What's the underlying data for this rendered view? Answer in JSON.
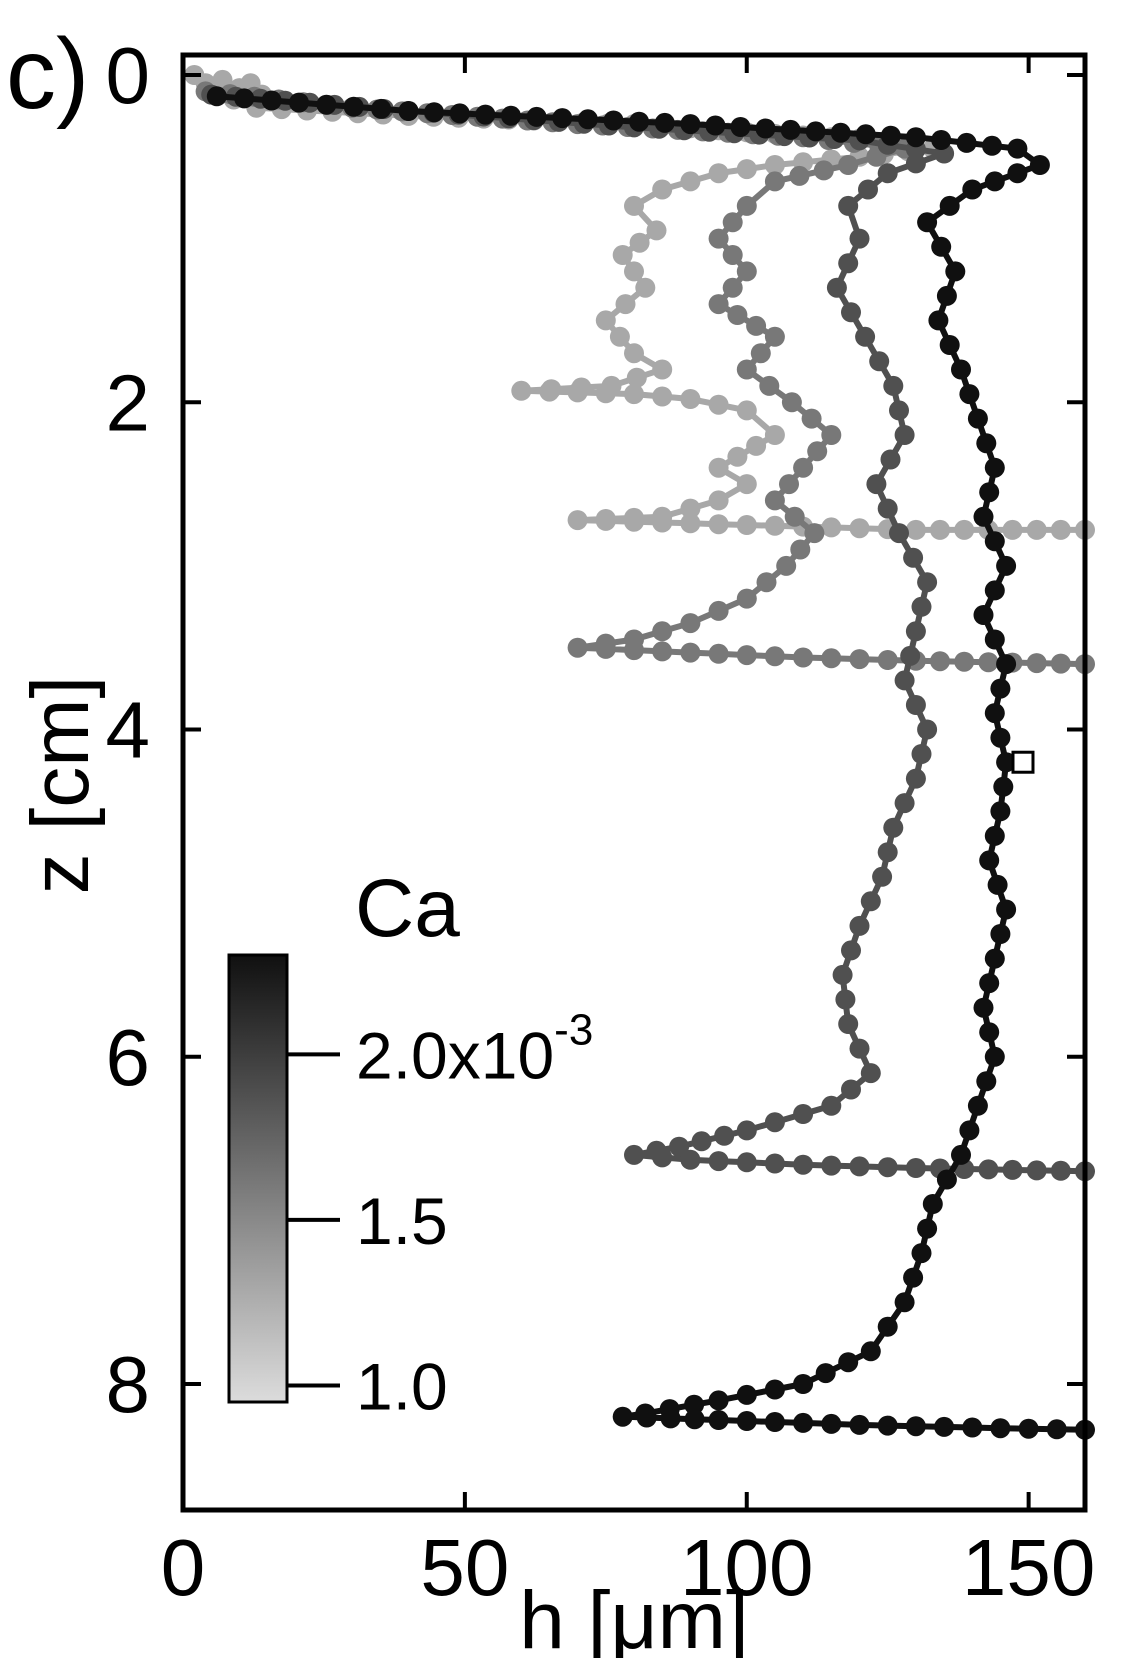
{
  "panel_label": "c)",
  "chart_data": {
    "type": "line",
    "xlabel": "h [μm]",
    "ylabel": "z [cm]",
    "xlim": [
      0,
      160
    ],
    "ylim": [
      9,
      0
    ],
    "xticks": [
      0,
      50,
      100,
      150
    ],
    "xtick_labels": [
      "0",
      "50",
      "100",
      "150"
    ],
    "yticks": [
      0,
      2,
      4,
      6,
      8
    ],
    "ytick_labels": [
      "0",
      "2",
      "4",
      "6",
      "8"
    ],
    "grid": false,
    "colorbar": {
      "title": "Ca",
      "ticks": [
        1.0,
        1.5,
        2.0
      ],
      "tick_labels": [
        "1.0",
        "1.5",
        "2.0x10"
      ],
      "tick_exponent": "-3",
      "range": [
        0.95,
        2.3
      ],
      "colors": [
        "#dcdcdc",
        "#101010"
      ]
    },
    "marker_square": {
      "h": 149,
      "z": 4.2
    },
    "series": [
      {
        "ca": 1.0,
        "color": "#a8a8a8",
        "points": [
          [
            2,
            0
          ],
          [
            4,
            0.05
          ],
          [
            7,
            0.03
          ],
          [
            10,
            0.08
          ],
          [
            12,
            0.05
          ],
          [
            14,
            0.12
          ],
          [
            9,
            0.15
          ],
          [
            13,
            0.2
          ],
          [
            40,
            0.25
          ],
          [
            80,
            0.3
          ],
          [
            100,
            0.35
          ],
          [
            115,
            0.38
          ],
          [
            125,
            0.4
          ],
          [
            133,
            0.45
          ],
          [
            120,
            0.5
          ],
          [
            105,
            0.55
          ],
          [
            95,
            0.6
          ],
          [
            85,
            0.7
          ],
          [
            80,
            0.8
          ],
          [
            84,
            0.95
          ],
          [
            78,
            1.1
          ],
          [
            82,
            1.3
          ],
          [
            75,
            1.5
          ],
          [
            80,
            1.7
          ],
          [
            85,
            1.8
          ],
          [
            76,
            1.9
          ],
          [
            60,
            1.93
          ],
          [
            80,
            1.95
          ],
          [
            90,
            1.98
          ],
          [
            100,
            2.05
          ],
          [
            105,
            2.2
          ],
          [
            95,
            2.4
          ],
          [
            100,
            2.5
          ],
          [
            95,
            2.6
          ],
          [
            85,
            2.7
          ],
          [
            70,
            2.72
          ],
          [
            90,
            2.74
          ],
          [
            110,
            2.76
          ],
          [
            130,
            2.78
          ],
          [
            160,
            2.78
          ]
        ]
      },
      {
        "ca": 1.5,
        "color": "#787878",
        "points": [
          [
            4,
            0.1
          ],
          [
            30,
            0.2
          ],
          [
            70,
            0.3
          ],
          [
            110,
            0.38
          ],
          [
            128,
            0.45
          ],
          [
            118,
            0.55
          ],
          [
            105,
            0.65
          ],
          [
            100,
            0.8
          ],
          [
            95,
            1.0
          ],
          [
            100,
            1.2
          ],
          [
            95,
            1.4
          ],
          [
            105,
            1.6
          ],
          [
            100,
            1.8
          ],
          [
            108,
            2.0
          ],
          [
            115,
            2.2
          ],
          [
            110,
            2.4
          ],
          [
            105,
            2.6
          ],
          [
            112,
            2.8
          ],
          [
            107,
            3.0
          ],
          [
            100,
            3.2
          ],
          [
            90,
            3.35
          ],
          [
            80,
            3.45
          ],
          [
            70,
            3.5
          ],
          [
            90,
            3.53
          ],
          [
            110,
            3.56
          ],
          [
            130,
            3.58
          ],
          [
            160,
            3.6
          ]
        ]
      },
      {
        "ca": 2.0,
        "color": "#505050",
        "points": [
          [
            5,
            0.12
          ],
          [
            40,
            0.22
          ],
          [
            80,
            0.32
          ],
          [
            120,
            0.4
          ],
          [
            135,
            0.48
          ],
          [
            125,
            0.6
          ],
          [
            118,
            0.8
          ],
          [
            120,
            1.0
          ],
          [
            116,
            1.3
          ],
          [
            121,
            1.6
          ],
          [
            126,
            1.9
          ],
          [
            128,
            2.2
          ],
          [
            123,
            2.5
          ],
          [
            127,
            2.8
          ],
          [
            132,
            3.1
          ],
          [
            130,
            3.4
          ],
          [
            128,
            3.7
          ],
          [
            132,
            4.0
          ],
          [
            130,
            4.3
          ],
          [
            126,
            4.6
          ],
          [
            124,
            4.9
          ],
          [
            120,
            5.2
          ],
          [
            117,
            5.5
          ],
          [
            118,
            5.8
          ],
          [
            122,
            6.1
          ],
          [
            115,
            6.3
          ],
          [
            100,
            6.45
          ],
          [
            88,
            6.55
          ],
          [
            80,
            6.6
          ],
          [
            90,
            6.63
          ],
          [
            110,
            6.66
          ],
          [
            130,
            6.68
          ],
          [
            160,
            6.7
          ]
        ]
      },
      {
        "ca": 2.3,
        "color": "#101010",
        "points": [
          [
            6,
            0.13
          ],
          [
            40,
            0.22
          ],
          [
            90,
            0.3
          ],
          [
            130,
            0.38
          ],
          [
            148,
            0.45
          ],
          [
            152,
            0.55
          ],
          [
            140,
            0.7
          ],
          [
            132,
            0.9
          ],
          [
            137,
            1.2
          ],
          [
            134,
            1.5
          ],
          [
            138,
            1.8
          ],
          [
            141,
            2.1
          ],
          [
            144,
            2.4
          ],
          [
            142,
            2.7
          ],
          [
            146,
            3.0
          ],
          [
            142,
            3.3
          ],
          [
            146,
            3.6
          ],
          [
            144,
            3.9
          ],
          [
            146,
            4.2
          ],
          [
            145,
            4.5
          ],
          [
            143,
            4.8
          ],
          [
            146,
            5.1
          ],
          [
            144,
            5.4
          ],
          [
            142,
            5.7
          ],
          [
            144,
            6.0
          ],
          [
            141,
            6.3
          ],
          [
            138,
            6.6
          ],
          [
            133,
            6.9
          ],
          [
            131,
            7.2
          ],
          [
            128,
            7.5
          ],
          [
            122,
            7.8
          ],
          [
            110,
            8.0
          ],
          [
            95,
            8.1
          ],
          [
            82,
            8.18
          ],
          [
            78,
            8.2
          ],
          [
            95,
            8.22
          ],
          [
            120,
            8.25
          ],
          [
            145,
            8.27
          ],
          [
            160,
            8.28
          ]
        ]
      }
    ]
  }
}
